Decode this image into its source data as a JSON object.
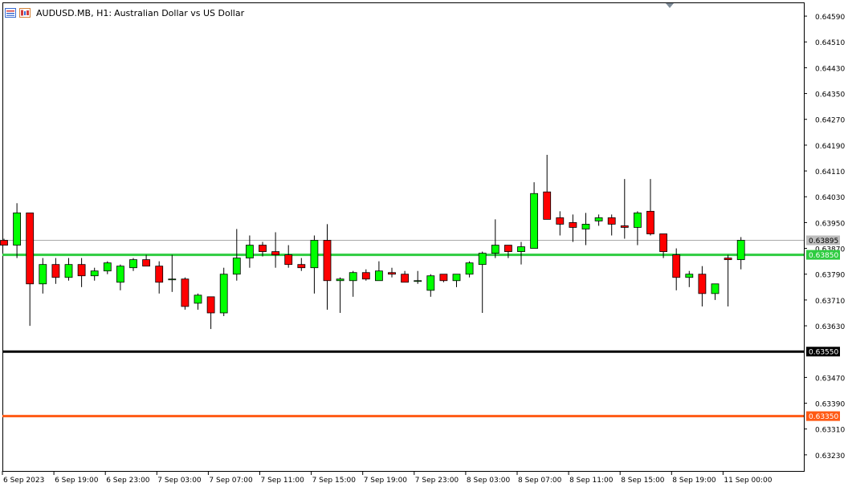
{
  "header": {
    "symbol": "AUDUSD.MB, H1:",
    "description": "Australian Dollar vs US Dollar",
    "icons": [
      "chart-list-icon",
      "chart-window-icon"
    ]
  },
  "colors": {
    "bull": "#00ff00",
    "bear": "#ff0000",
    "level_green": "#2ecc40",
    "level_black": "#000000",
    "level_orange": "#ff5a14",
    "bid_line": "#aaaaaa"
  },
  "chart_data": {
    "type": "candlestick",
    "symbol": "AUDUSD.MB",
    "timeframe": "H1",
    "ylim": [
      0.6318,
      0.6463
    ],
    "y_ticks": [
      "0.64590",
      "0.64510",
      "0.64430",
      "0.64350",
      "0.64270",
      "0.64190",
      "0.64110",
      "0.64030",
      "0.63950",
      "0.63870",
      "0.63790",
      "0.63710",
      "0.63630",
      "0.63470",
      "0.63390",
      "0.63310",
      "0.63230"
    ],
    "x_labels": [
      "6 Sep 2023",
      "6 Sep 19:00",
      "6 Sep 23:00",
      "7 Sep 03:00",
      "7 Sep 07:00",
      "7 Sep 11:00",
      "7 Sep 15:00",
      "7 Sep 19:00",
      "7 Sep 23:00",
      "8 Sep 03:00",
      "8 Sep 07:00",
      "8 Sep 11:00",
      "8 Sep 15:00",
      "8 Sep 19:00",
      "11 Sep 00:00"
    ],
    "levels": [
      {
        "price": 0.6385,
        "label": "0.63850",
        "color": "#2ecc40",
        "width": 3
      },
      {
        "price": 0.6355,
        "label": "0.63550",
        "color": "#000000",
        "width": 3
      },
      {
        "price": 0.6335,
        "label": "0.63350",
        "color": "#ff5a14",
        "width": 3
      }
    ],
    "bid": {
      "price": 0.63895,
      "label": "0.63895"
    },
    "candles": [
      {
        "o": 0.63895,
        "h": 0.639,
        "l": 0.6388,
        "c": 0.6388
      },
      {
        "o": 0.6388,
        "h": 0.6401,
        "l": 0.6384,
        "c": 0.6398
      },
      {
        "o": 0.6398,
        "h": 0.6398,
        "l": 0.6363,
        "c": 0.6376
      },
      {
        "o": 0.6376,
        "h": 0.6384,
        "l": 0.6373,
        "c": 0.6382
      },
      {
        "o": 0.6382,
        "h": 0.6384,
        "l": 0.6376,
        "c": 0.6378
      },
      {
        "o": 0.6378,
        "h": 0.6384,
        "l": 0.6377,
        "c": 0.6382
      },
      {
        "o": 0.6382,
        "h": 0.6384,
        "l": 0.6375,
        "c": 0.63785
      },
      {
        "o": 0.63785,
        "h": 0.6381,
        "l": 0.6377,
        "c": 0.638
      },
      {
        "o": 0.638,
        "h": 0.6383,
        "l": 0.6379,
        "c": 0.63825
      },
      {
        "o": 0.63765,
        "h": 0.6382,
        "l": 0.6374,
        "c": 0.63815
      },
      {
        "o": 0.6381,
        "h": 0.6384,
        "l": 0.638,
        "c": 0.63835
      },
      {
        "o": 0.63835,
        "h": 0.6385,
        "l": 0.63815,
        "c": 0.63815
      },
      {
        "o": 0.63815,
        "h": 0.6383,
        "l": 0.6373,
        "c": 0.63765
      },
      {
        "o": 0.63775,
        "h": 0.6385,
        "l": 0.63735,
        "c": 0.63775
      },
      {
        "o": 0.63775,
        "h": 0.6378,
        "l": 0.6368,
        "c": 0.6369
      },
      {
        "o": 0.637,
        "h": 0.6373,
        "l": 0.6368,
        "c": 0.63725
      },
      {
        "o": 0.6372,
        "h": 0.6372,
        "l": 0.6362,
        "c": 0.6367
      },
      {
        "o": 0.6367,
        "h": 0.6381,
        "l": 0.6366,
        "c": 0.6379
      },
      {
        "o": 0.6379,
        "h": 0.6393,
        "l": 0.6377,
        "c": 0.6384
      },
      {
        "o": 0.6384,
        "h": 0.6391,
        "l": 0.6381,
        "c": 0.6388
      },
      {
        "o": 0.6388,
        "h": 0.6389,
        "l": 0.63845,
        "c": 0.6386
      },
      {
        "o": 0.6386,
        "h": 0.6392,
        "l": 0.6381,
        "c": 0.6385
      },
      {
        "o": 0.6385,
        "h": 0.6388,
        "l": 0.6381,
        "c": 0.6382
      },
      {
        "o": 0.6382,
        "h": 0.6384,
        "l": 0.638,
        "c": 0.6381
      },
      {
        "o": 0.6381,
        "h": 0.6391,
        "l": 0.6373,
        "c": 0.63895
      },
      {
        "o": 0.63895,
        "h": 0.63945,
        "l": 0.6368,
        "c": 0.6377
      },
      {
        "o": 0.6377,
        "h": 0.6378,
        "l": 0.6367,
        "c": 0.63775
      },
      {
        "o": 0.6377,
        "h": 0.638,
        "l": 0.6372,
        "c": 0.63795
      },
      {
        "o": 0.63795,
        "h": 0.63805,
        "l": 0.6377,
        "c": 0.63775
      },
      {
        "o": 0.6377,
        "h": 0.6383,
        "l": 0.6377,
        "c": 0.638
      },
      {
        "o": 0.63795,
        "h": 0.6381,
        "l": 0.6378,
        "c": 0.6379
      },
      {
        "o": 0.6379,
        "h": 0.638,
        "l": 0.63765,
        "c": 0.63765
      },
      {
        "o": 0.6377,
        "h": 0.638,
        "l": 0.6376,
        "c": 0.6377
      },
      {
        "o": 0.6374,
        "h": 0.6379,
        "l": 0.6372,
        "c": 0.63785
      },
      {
        "o": 0.6379,
        "h": 0.6379,
        "l": 0.63765,
        "c": 0.6377
      },
      {
        "o": 0.6377,
        "h": 0.6379,
        "l": 0.6375,
        "c": 0.6379
      },
      {
        "o": 0.6379,
        "h": 0.6383,
        "l": 0.6378,
        "c": 0.63825
      },
      {
        "o": 0.6382,
        "h": 0.6386,
        "l": 0.6367,
        "c": 0.63855
      },
      {
        "o": 0.63855,
        "h": 0.6396,
        "l": 0.6384,
        "c": 0.6388
      },
      {
        "o": 0.6388,
        "h": 0.6388,
        "l": 0.6384,
        "c": 0.6386
      },
      {
        "o": 0.6386,
        "h": 0.6389,
        "l": 0.6382,
        "c": 0.63875
      },
      {
        "o": 0.6387,
        "h": 0.64075,
        "l": 0.6387,
        "c": 0.6404
      },
      {
        "o": 0.64045,
        "h": 0.6416,
        "l": 0.6396,
        "c": 0.6396
      },
      {
        "o": 0.63965,
        "h": 0.63985,
        "l": 0.6391,
        "c": 0.63945
      },
      {
        "o": 0.6395,
        "h": 0.63975,
        "l": 0.6389,
        "c": 0.63935
      },
      {
        "o": 0.6393,
        "h": 0.6398,
        "l": 0.6388,
        "c": 0.63945
      },
      {
        "o": 0.63955,
        "h": 0.63975,
        "l": 0.6394,
        "c": 0.63965
      },
      {
        "o": 0.63965,
        "h": 0.63975,
        "l": 0.6391,
        "c": 0.63945
      },
      {
        "o": 0.6394,
        "h": 0.64085,
        "l": 0.639,
        "c": 0.63935
      },
      {
        "o": 0.63935,
        "h": 0.63985,
        "l": 0.6388,
        "c": 0.6398
      },
      {
        "o": 0.63985,
        "h": 0.64085,
        "l": 0.6391,
        "c": 0.63915
      },
      {
        "o": 0.63915,
        "h": 0.6391,
        "l": 0.6384,
        "c": 0.6386
      },
      {
        "o": 0.6385,
        "h": 0.6387,
        "l": 0.6374,
        "c": 0.6378
      },
      {
        "o": 0.6378,
        "h": 0.638,
        "l": 0.6375,
        "c": 0.6379
      },
      {
        "o": 0.6379,
        "h": 0.63815,
        "l": 0.6369,
        "c": 0.6373
      },
      {
        "o": 0.6373,
        "h": 0.6376,
        "l": 0.6371,
        "c": 0.6376
      },
      {
        "o": 0.6384,
        "h": 0.6385,
        "l": 0.6369,
        "c": 0.63835
      },
      {
        "o": 0.63835,
        "h": 0.63905,
        "l": 0.63805,
        "c": 0.63895
      }
    ]
  }
}
